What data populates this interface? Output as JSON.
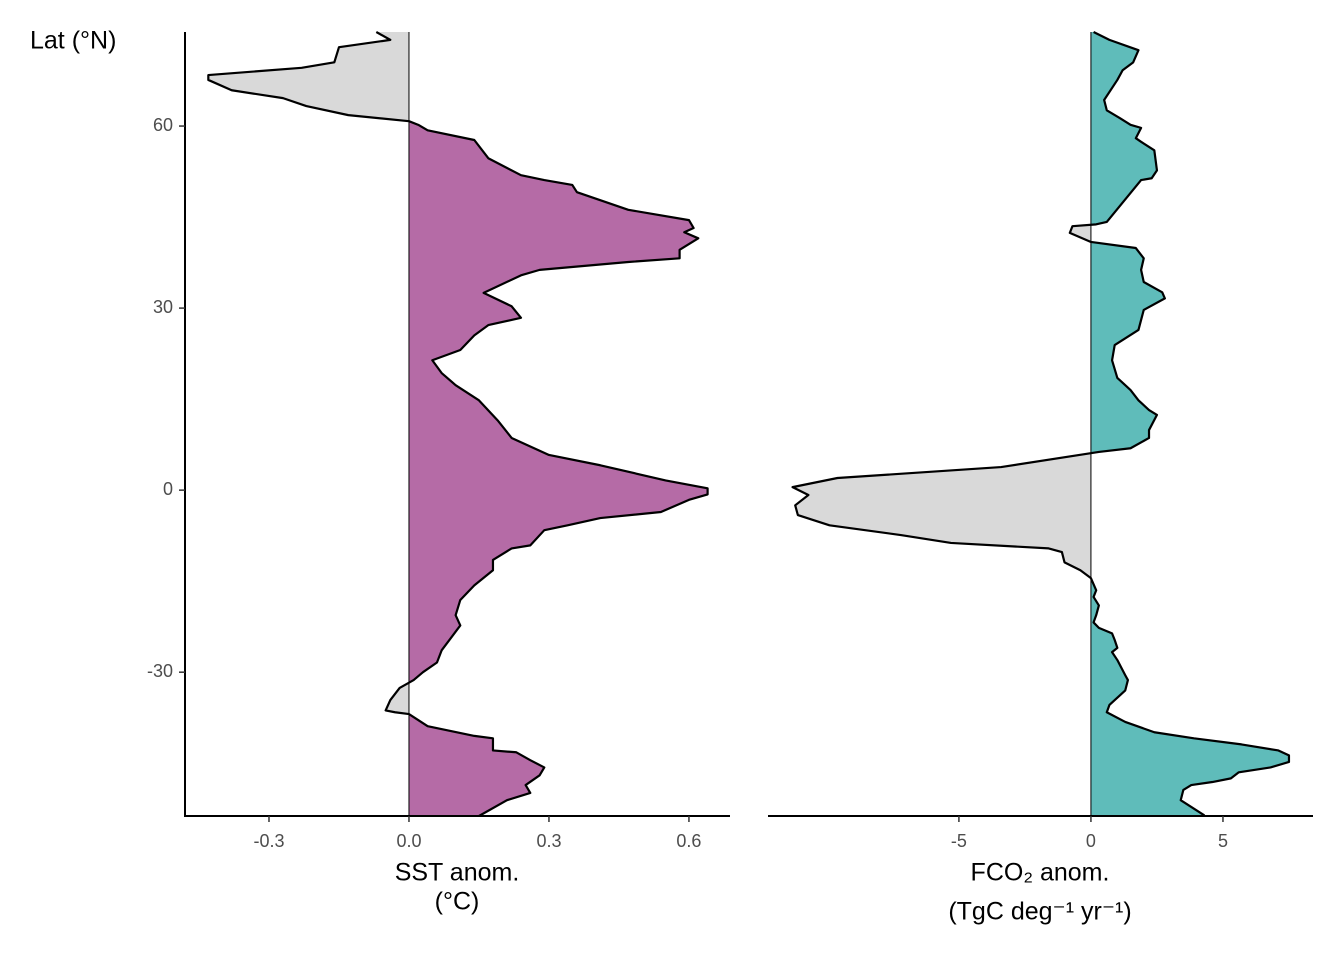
{
  "chart_data": [
    {
      "type": "area",
      "ylabel": "Lat (°N)",
      "xlabel": [
        "SST anom.",
        "(°C)"
      ],
      "color": "#b56ba6",
      "negative_color": "#d9d9d9",
      "ylim": [
        -53.7,
        75.5
      ],
      "yticks": [
        -30,
        0,
        30,
        60
      ],
      "xlim": [
        -0.48,
        0.688
      ],
      "xticks": [
        -0.3,
        {
          "value": 0,
          "label": "0.0"
        },
        0.3,
        0.6
      ],
      "y": [
        75.5,
        74.2,
        73.0,
        70.5,
        69.6,
        68.4,
        67.6,
        65.9,
        64.6,
        63.3,
        61.8,
        60.8,
        60.2,
        59.3,
        57.7,
        54.7,
        51.9,
        51.1,
        50.3,
        49.1,
        46.2,
        44.5,
        43.2,
        42.5,
        41.5,
        39.6,
        38.2,
        37.6,
        36.3,
        35.4,
        32.5,
        30.3,
        28.4,
        27.2,
        25.5,
        23.1,
        21.4,
        19.3,
        17.3,
        14.8,
        11.5,
        8.6,
        5.8,
        4.1,
        1.6,
        0.3,
        -0.7,
        -1.6,
        -3.6,
        -4.6,
        -5.8,
        -6.6,
        -9.1,
        -9.6,
        -11.5,
        -13.2,
        -15.7,
        -18.1,
        -20.6,
        -22.3,
        -26.4,
        -28.4,
        -30.0,
        -31.3,
        -32.6,
        -34.6,
        -36.3,
        -36.6,
        -36.9,
        -38.9,
        -40.5,
        -40.9,
        -42.9,
        -43.2,
        -44.5,
        -45.7,
        -47.0,
        -48.6,
        -49.9,
        -51.1,
        -53.7
      ],
      "values": [
        -0.07,
        -0.04,
        -0.15,
        -0.16,
        -0.23,
        -0.43,
        -0.43,
        -0.38,
        -0.27,
        -0.22,
        -0.13,
        0.0,
        0.02,
        0.04,
        0.14,
        0.17,
        0.24,
        0.29,
        0.35,
        0.36,
        0.47,
        0.6,
        0.61,
        0.59,
        0.62,
        0.58,
        0.58,
        0.47,
        0.28,
        0.24,
        0.16,
        0.22,
        0.24,
        0.17,
        0.14,
        0.11,
        0.05,
        0.07,
        0.1,
        0.15,
        0.19,
        0.22,
        0.3,
        0.41,
        0.55,
        0.64,
        0.64,
        0.6,
        0.54,
        0.41,
        0.34,
        0.29,
        0.26,
        0.22,
        0.18,
        0.18,
        0.14,
        0.11,
        0.1,
        0.11,
        0.07,
        0.06,
        0.03,
        0.01,
        -0.02,
        -0.04,
        -0.05,
        -0.03,
        0.0,
        0.04,
        0.14,
        0.18,
        0.18,
        0.23,
        0.26,
        0.29,
        0.28,
        0.25,
        0.26,
        0.21,
        0.15
      ]
    },
    {
      "type": "area",
      "xlabel": [
        "FCO₂ anom.",
        "(TgC deg⁻¹ yr⁻¹)"
      ],
      "color": "#5fbcba",
      "negative_color": "#d9d9d9",
      "xlim": [
        -12.23,
        8.41
      ],
      "xticks": [
        -5,
        0,
        5
      ],
      "y": [
        75.5,
        74.2,
        72.5,
        70.5,
        69.2,
        67.6,
        64.3,
        62.6,
        61.3,
        60.2,
        59.7,
        58.0,
        57.4,
        56.0,
        52.7,
        51.4,
        51.1,
        44.2,
        43.8,
        43.5,
        42.4,
        40.9,
        39.9,
        38.2,
        36.3,
        34.3,
        32.6,
        31.6,
        29.7,
        26.4,
        23.9,
        21.4,
        18.5,
        16.5,
        14.8,
        13.2,
        12.4,
        9.9,
        8.6,
        6.9,
        6.3,
        3.8,
        2.0,
        0.5,
        -0.8,
        -2.5,
        -4.1,
        -5.8,
        -7.4,
        -8.7,
        -9.6,
        -10.2,
        -11.9,
        -13.2,
        -14.5,
        -16.5,
        -17.6,
        -19.0,
        -20.6,
        -21.8,
        -22.7,
        -23.6,
        -24.7,
        -26.0,
        -26.7,
        -28.0,
        -30.5,
        -31.3,
        -33.0,
        -35.4,
        -36.6,
        -38.2,
        -39.9,
        -40.9,
        -41.9,
        -42.9,
        -43.7,
        -44.8,
        -45.7,
        -46.5,
        -47.5,
        -48.1,
        -48.6,
        -49.4,
        -51.1,
        -53.6
      ],
      "values": [
        0.1,
        0.7,
        1.8,
        1.6,
        1.2,
        1.0,
        0.5,
        0.6,
        1.1,
        1.5,
        1.9,
        1.7,
        1.9,
        2.4,
        2.5,
        2.3,
        1.9,
        0.6,
        0.2,
        -0.7,
        -0.8,
        0.0,
        1.7,
        2.0,
        1.9,
        2.0,
        2.7,
        2.8,
        2.0,
        1.8,
        0.9,
        0.8,
        1.0,
        1.5,
        1.8,
        2.2,
        2.5,
        2.2,
        2.2,
        1.5,
        0.3,
        -3.4,
        -9.6,
        -11.3,
        -10.7,
        -11.2,
        -11.1,
        -9.9,
        -7.2,
        -5.3,
        -1.6,
        -1.1,
        -1.0,
        -0.4,
        0.0,
        0.2,
        0.1,
        0.3,
        0.2,
        0.1,
        0.3,
        0.8,
        0.9,
        1.0,
        0.8,
        1.0,
        1.3,
        1.4,
        1.3,
        0.7,
        0.6,
        1.3,
        2.4,
        3.9,
        5.7,
        7.1,
        7.5,
        7.5,
        6.8,
        5.6,
        5.3,
        4.6,
        3.8,
        3.5,
        3.4,
        4.3
      ]
    }
  ]
}
